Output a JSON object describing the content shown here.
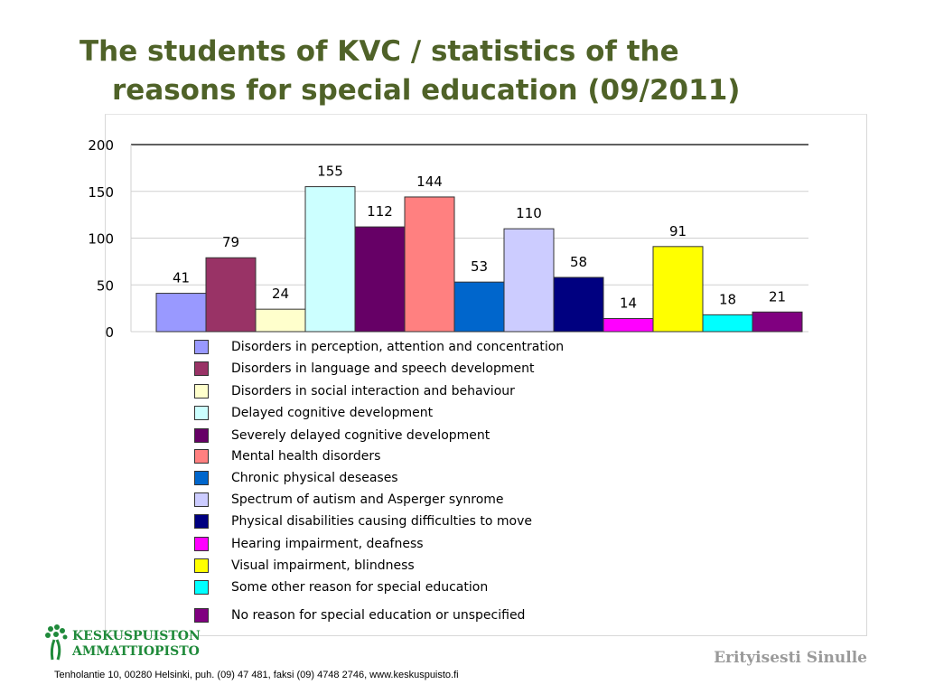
{
  "title": {
    "line1": "The students of KVC  /  statistics of the",
    "line2": "reasons for special education (09/2011)"
  },
  "chart_data": {
    "type": "bar",
    "title": "The students of KVC / statistics of the reasons for special education (09/2011)",
    "ylim": [
      0,
      200
    ],
    "yticks": [
      "0",
      "50",
      "100",
      "150",
      "200"
    ],
    "grid": true,
    "legend_position": "bottom",
    "categories": [
      "Disorders in perception, attention and concentration",
      "Disorders in language  and speech development",
      "Disorders in social interaction and behaviour",
      "Delayed cognitive development",
      "Severely delayed cognitive development",
      "Mental health disorders",
      "Chronic physical deseases",
      "Spectrum of autism and Asperger synrome",
      "Physical disabilities causing difficulties to move",
      "Hearing impairment, deafness",
      "Visual impairment, blindness",
      "Some other reason for special education",
      "No reason for special education or unspecified"
    ],
    "values": [
      41,
      79,
      24,
      155,
      112,
      144,
      53,
      110,
      58,
      14,
      91,
      18,
      21
    ],
    "labels": [
      "41",
      "79",
      "24",
      "155",
      "112",
      "144",
      "53",
      "110",
      "58",
      "14",
      "91",
      "18",
      "21"
    ],
    "colors": [
      "#9999ff",
      "#993366",
      "#ffffcc",
      "#ccffff",
      "#660066",
      "#ff8080",
      "#0066cc",
      "#ccccff",
      "#000080",
      "#ff00ff",
      "#ffff00",
      "#00ffff",
      "#800080"
    ]
  },
  "footer": {
    "logo_line1": "KESKUSPUISTON",
    "logo_line2": "AMMATTIOPISTO",
    "slogan": "Erityisesti Sinulle",
    "address": "Tenholantie 10, 00280 Helsinki, puh. (09) 47 481, faksi (09) 4748 2746, www.keskuspuisto.fi"
  }
}
